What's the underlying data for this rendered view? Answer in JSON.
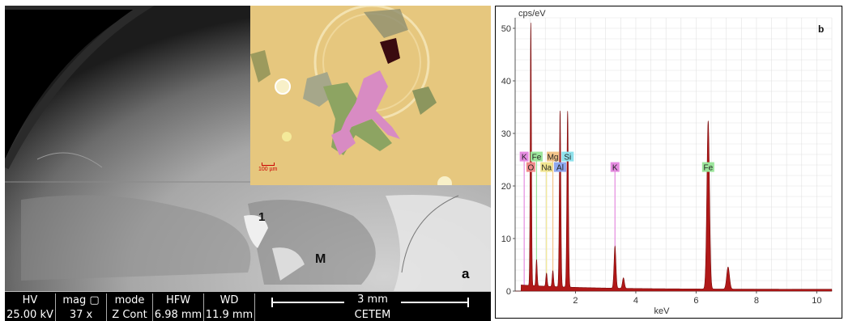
{
  "panel_a": {
    "letter": "a",
    "labels": {
      "point_1": "1",
      "matrix": "M"
    },
    "inset_scale": "100 µm",
    "info_bar": [
      {
        "key": "HV",
        "value": "25.00 kV"
      },
      {
        "key": "mag ▢",
        "value": "37 x"
      },
      {
        "key": "mode",
        "value": "Z Cont"
      },
      {
        "key": "HFW",
        "value": "6.98 mm"
      },
      {
        "key": "WD",
        "value": "11.9 mm"
      }
    ],
    "scale_bar": {
      "length": "3 mm",
      "lab": "CETEM"
    }
  },
  "panel_b": {
    "letter": "b",
    "y_unit": "cps/eV",
    "x_unit": "keV",
    "x_ticks": [
      "2",
      "4",
      "6",
      "8",
      "10"
    ],
    "y_ticks": [
      "0",
      "10",
      "20",
      "30",
      "40",
      "50"
    ],
    "colors": {
      "spectrum_fill": "#b01818",
      "spectrum_edge": "#7a0a0a",
      "grid": "#e2e2e2"
    },
    "element_tags": [
      {
        "symbol": "K",
        "color": "#e58be0"
      },
      {
        "symbol": "O",
        "color": "#f08a8a"
      },
      {
        "symbol": "Fe",
        "color": "#9be59b"
      },
      {
        "symbol": "Na",
        "color": "#f1e58f"
      },
      {
        "symbol": "Mg",
        "color": "#f3c48a"
      },
      {
        "symbol": "Al",
        "color": "#8fa8f0"
      },
      {
        "symbol": "Si",
        "color": "#8fe2ec"
      },
      {
        "symbol": "K",
        "color": "#e58be0"
      },
      {
        "symbol": "Fe",
        "color": "#9be59b"
      }
    ]
  },
  "chart_data": {
    "type": "area",
    "xlabel": "keV",
    "ylabel": "cps/eV",
    "xlim": [
      0,
      10.5
    ],
    "ylim": [
      0,
      52
    ],
    "grid": true,
    "peaks": [
      {
        "element": "O",
        "energy": 0.52,
        "height": 50
      },
      {
        "element": "Fe",
        "energy": 0.71,
        "height": 5
      },
      {
        "element": "Na",
        "energy": 1.04,
        "height": 2.5
      },
      {
        "element": "Mg",
        "energy": 1.25,
        "height": 3
      },
      {
        "element": "Al",
        "energy": 1.49,
        "height": 33.5
      },
      {
        "element": "Si",
        "energy": 1.74,
        "height": 33.5
      },
      {
        "element": "K",
        "energy": 3.31,
        "height": 8
      },
      {
        "element": "K",
        "energy": 3.59,
        "height": 2
      },
      {
        "element": "Fe",
        "energy": 6.4,
        "height": 32
      },
      {
        "element": "Fe",
        "energy": 7.06,
        "height": 4.2
      }
    ],
    "markers": [
      {
        "element": "K",
        "energy": 0.3
      },
      {
        "element": "O",
        "energy": 0.52
      },
      {
        "element": "Fe",
        "energy": 0.71
      },
      {
        "element": "Na",
        "energy": 1.04
      },
      {
        "element": "Mg",
        "energy": 1.25
      },
      {
        "element": "Al",
        "energy": 1.49
      },
      {
        "element": "Si",
        "energy": 1.74
      },
      {
        "element": "K",
        "energy": 3.31
      },
      {
        "element": "Fe",
        "energy": 6.4
      }
    ]
  }
}
